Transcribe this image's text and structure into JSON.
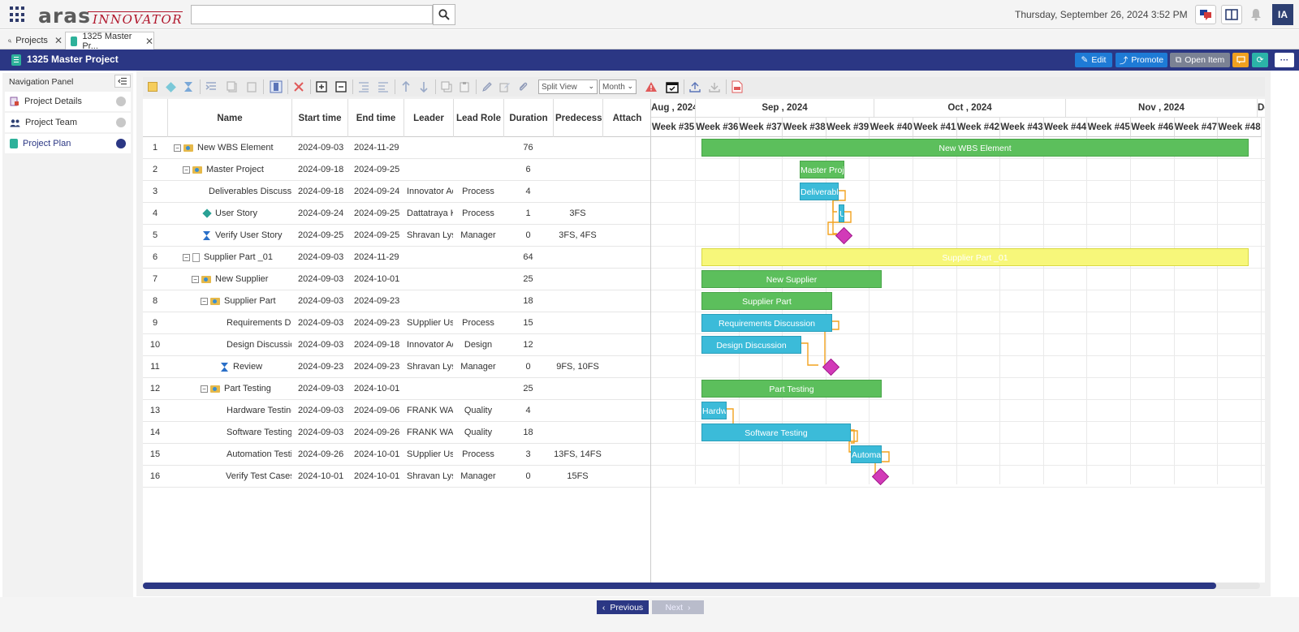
{
  "header": {
    "logo_primary": "aras",
    "logo_secondary": "INNOVATOR",
    "search_value": "",
    "datetime": "Thursday, September 26, 2024 3:52 PM",
    "user_initials": "IA"
  },
  "tabs": [
    {
      "label": "Projects",
      "icon": "search-icon"
    },
    {
      "label": "1325 Master Pr...",
      "icon": "project-icon"
    }
  ],
  "titlebar": {
    "title": "1325 Master Project",
    "edit_label": "Edit",
    "promote_label": "Promote",
    "open_item_label": "Open Item",
    "colors": {
      "bar": "#2b3784",
      "edit": "#1e7bd6",
      "promote": "#1e7bd6",
      "open_item": "#7b8294",
      "comment": "#f0a020",
      "refresh": "#2bb3a8"
    }
  },
  "nav": {
    "header": "Navigation Panel",
    "items": [
      {
        "label": "Project Details"
      },
      {
        "label": "Project Team"
      },
      {
        "label": "Project Plan"
      }
    ]
  },
  "toolbar": {
    "view_select": "Split View",
    "scale_select": "Month"
  },
  "grid": {
    "columns": [
      "Name",
      "Start time",
      "End time",
      "Leader",
      "Lead Role",
      "Duration",
      "Predecessor",
      "Attach"
    ],
    "rows": [
      {
        "num": "1",
        "name": "New WBS Element",
        "start": "2024-09-03",
        "end": "2024-11-29",
        "leader": "",
        "role": "",
        "duration": "76",
        "pred": ""
      },
      {
        "num": "2",
        "name": "Master Project",
        "start": "2024-09-18",
        "end": "2024-09-25",
        "leader": "",
        "role": "",
        "duration": "6",
        "pred": ""
      },
      {
        "num": "3",
        "name": "Deliverables Discussion",
        "start": "2024-09-18",
        "end": "2024-09-24",
        "leader": "Innovator Admin",
        "role": "Process",
        "duration": "4",
        "pred": ""
      },
      {
        "num": "4",
        "name": "User Story",
        "start": "2024-09-24",
        "end": "2024-09-25",
        "leader": "Dattatraya K.",
        "role": "Process",
        "duration": "1",
        "pred": "3FS"
      },
      {
        "num": "5",
        "name": "Verify User Story",
        "start": "2024-09-25",
        "end": "2024-09-25",
        "leader": "Shravan Lysetti",
        "role": "Manager",
        "duration": "0",
        "pred": "3FS, 4FS"
      },
      {
        "num": "6",
        "name": "Supplier Part _01",
        "start": "2024-09-03",
        "end": "2024-11-29",
        "leader": "",
        "role": "",
        "duration": "64",
        "pred": ""
      },
      {
        "num": "7",
        "name": "New Supplier",
        "start": "2024-09-03",
        "end": "2024-10-01",
        "leader": "",
        "role": "",
        "duration": "25",
        "pred": ""
      },
      {
        "num": "8",
        "name": "Supplier Part",
        "start": "2024-09-03",
        "end": "2024-09-23",
        "leader": "",
        "role": "",
        "duration": "18",
        "pred": ""
      },
      {
        "num": "9",
        "name": "Requirements Discussion",
        "start": "2024-09-03",
        "end": "2024-09-23",
        "leader": "SUpplier User",
        "role": "Process",
        "duration": "15",
        "pred": ""
      },
      {
        "num": "10",
        "name": "Design Discussion",
        "start": "2024-09-03",
        "end": "2024-09-18",
        "leader": "Innovator Admin",
        "role": "Design",
        "duration": "12",
        "pred": ""
      },
      {
        "num": "11",
        "name": "Review",
        "start": "2024-09-23",
        "end": "2024-09-23",
        "leader": "Shravan Lysetti",
        "role": "Manager",
        "duration": "0",
        "pred": "9FS, 10FS"
      },
      {
        "num": "12",
        "name": "Part Testing",
        "start": "2024-09-03",
        "end": "2024-10-01",
        "leader": "",
        "role": "",
        "duration": "25",
        "pred": ""
      },
      {
        "num": "13",
        "name": "Hardware Testing",
        "start": "2024-09-03",
        "end": "2024-09-06",
        "leader": "FRANK WANG",
        "role": "Quality",
        "duration": "4",
        "pred": ""
      },
      {
        "num": "14",
        "name": "Software Testing",
        "start": "2024-09-03",
        "end": "2024-09-26",
        "leader": "FRANK WANG",
        "role": "Quality",
        "duration": "18",
        "pred": ""
      },
      {
        "num": "15",
        "name": "Automation Testing",
        "start": "2024-09-26",
        "end": "2024-10-01",
        "leader": "SUpplier User",
        "role": "Process",
        "duration": "3",
        "pred": "13FS, 14FS"
      },
      {
        "num": "16",
        "name": "Verify Test Cases",
        "start": "2024-10-01",
        "end": "2024-10-01",
        "leader": "Shravan Lysetti",
        "role": "Manager",
        "duration": "0",
        "pred": "15FS"
      }
    ]
  },
  "gantt": {
    "months": [
      "Aug , 2024",
      "Sep , 2024",
      "Oct , 2024",
      "Nov , 2024",
      "Dec"
    ],
    "weeks": [
      "Week #35",
      "Week #36",
      "Week #37",
      "Week #38",
      "Week #39",
      "Week #40",
      "Week #41",
      "Week #42",
      "Week #43",
      "Week #44",
      "Week #45",
      "Week #46",
      "Week #47",
      "Week #48"
    ],
    "bar_labels": {
      "b1": "New WBS Element",
      "b2": "Master Project",
      "b3": "Deliverables Discussion",
      "b4": "User Story",
      "b6": "Supplier Part _01",
      "b7": "New Supplier",
      "b8": "Supplier Part",
      "b9": "Requirements Discussion",
      "b10": "Design Discussion",
      "b12": "Part Testing",
      "b13": "Hardware Testing",
      "b14": "Software Testing",
      "b15": "Automation Testing"
    },
    "colors": {
      "summary": "#5cbf5c",
      "task": "#3bbbd9",
      "milestone": "#d23ab8",
      "yellow": "#f7f77a",
      "link": "#f2a21e"
    }
  },
  "pager": {
    "previous": "Previous",
    "next": "Next"
  }
}
